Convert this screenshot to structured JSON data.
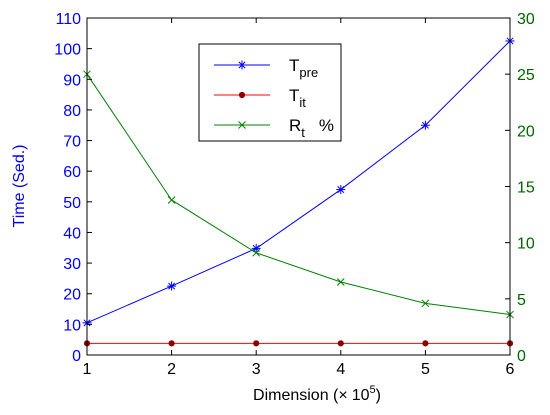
{
  "chart_data": {
    "type": "line",
    "x": [
      1,
      2,
      3,
      4,
      5,
      6
    ],
    "xlabel": {
      "text": "Dimension (",
      "times": "×",
      "base": "10",
      "exp": "5",
      "close": ")"
    },
    "ylabel_left": "Time (Sed.)",
    "ylabel_right": "",
    "xlim": [
      1,
      6
    ],
    "ylim_left": [
      0,
      110
    ],
    "ylim_right": [
      0,
      30
    ],
    "xticks": [
      "1",
      "2",
      "3",
      "4",
      "5",
      "6"
    ],
    "yticks_left": [
      "0",
      "10",
      "20",
      "30",
      "40",
      "50",
      "60",
      "70",
      "80",
      "90",
      "100",
      "110"
    ],
    "yticks_right": [
      "0",
      "5",
      "10",
      "15",
      "20",
      "25",
      "30"
    ],
    "grid": false,
    "legend_position": "top-center",
    "series": [
      {
        "name": "T_pre",
        "label_main": "T",
        "label_sub": "pre",
        "label_suffix": "",
        "axis": "left",
        "color": "#0000ff",
        "marker": "asterisk",
        "values": [
          10.5,
          22.5,
          34.8,
          54,
          75,
          102.5
        ]
      },
      {
        "name": "T_it",
        "label_main": "T",
        "label_sub": "it",
        "label_suffix": "",
        "axis": "left",
        "color": "#ff0000",
        "marker": "dot",
        "values": [
          3.8,
          3.8,
          3.8,
          3.8,
          3.8,
          3.8
        ]
      },
      {
        "name": "R_t %",
        "label_main": "R",
        "label_sub": "t",
        "label_suffix": "%",
        "axis": "right",
        "color": "#008000",
        "marker": "x",
        "values": [
          25,
          13.8,
          9.1,
          6.5,
          4.6,
          3.6
        ]
      }
    ]
  }
}
